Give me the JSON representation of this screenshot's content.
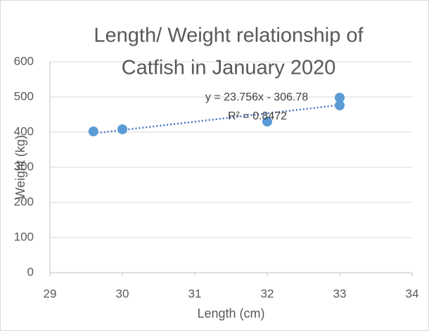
{
  "chart_data": {
    "type": "scatter",
    "title": [
      "Length/ Weight relationship of",
      "Catfish in January 2020"
    ],
    "x_label": "Length (cm)",
    "y_label": "Weight (kg)",
    "series": [
      {
        "name": "Weight",
        "color": "#5b9bd5",
        "x": [
          29.6,
          30,
          32,
          33,
          33
        ],
        "values": [
          402,
          408,
          430,
          476,
          498
        ]
      }
    ],
    "trendline": {
      "slope": 23.756,
      "intercept": -306.78,
      "equation": "y = 23.756x - 306.78",
      "r_squared": 0.8472,
      "r_squared_label": "R² = 0.8472",
      "color": "#4472c4"
    },
    "xlim": [
      29,
      34
    ],
    "xticks": [
      29,
      30,
      31,
      32,
      33,
      34
    ],
    "ylim": [
      0,
      600
    ],
    "yticks": [
      0,
      100,
      200,
      300,
      400,
      500,
      600
    ],
    "grid": true
  }
}
